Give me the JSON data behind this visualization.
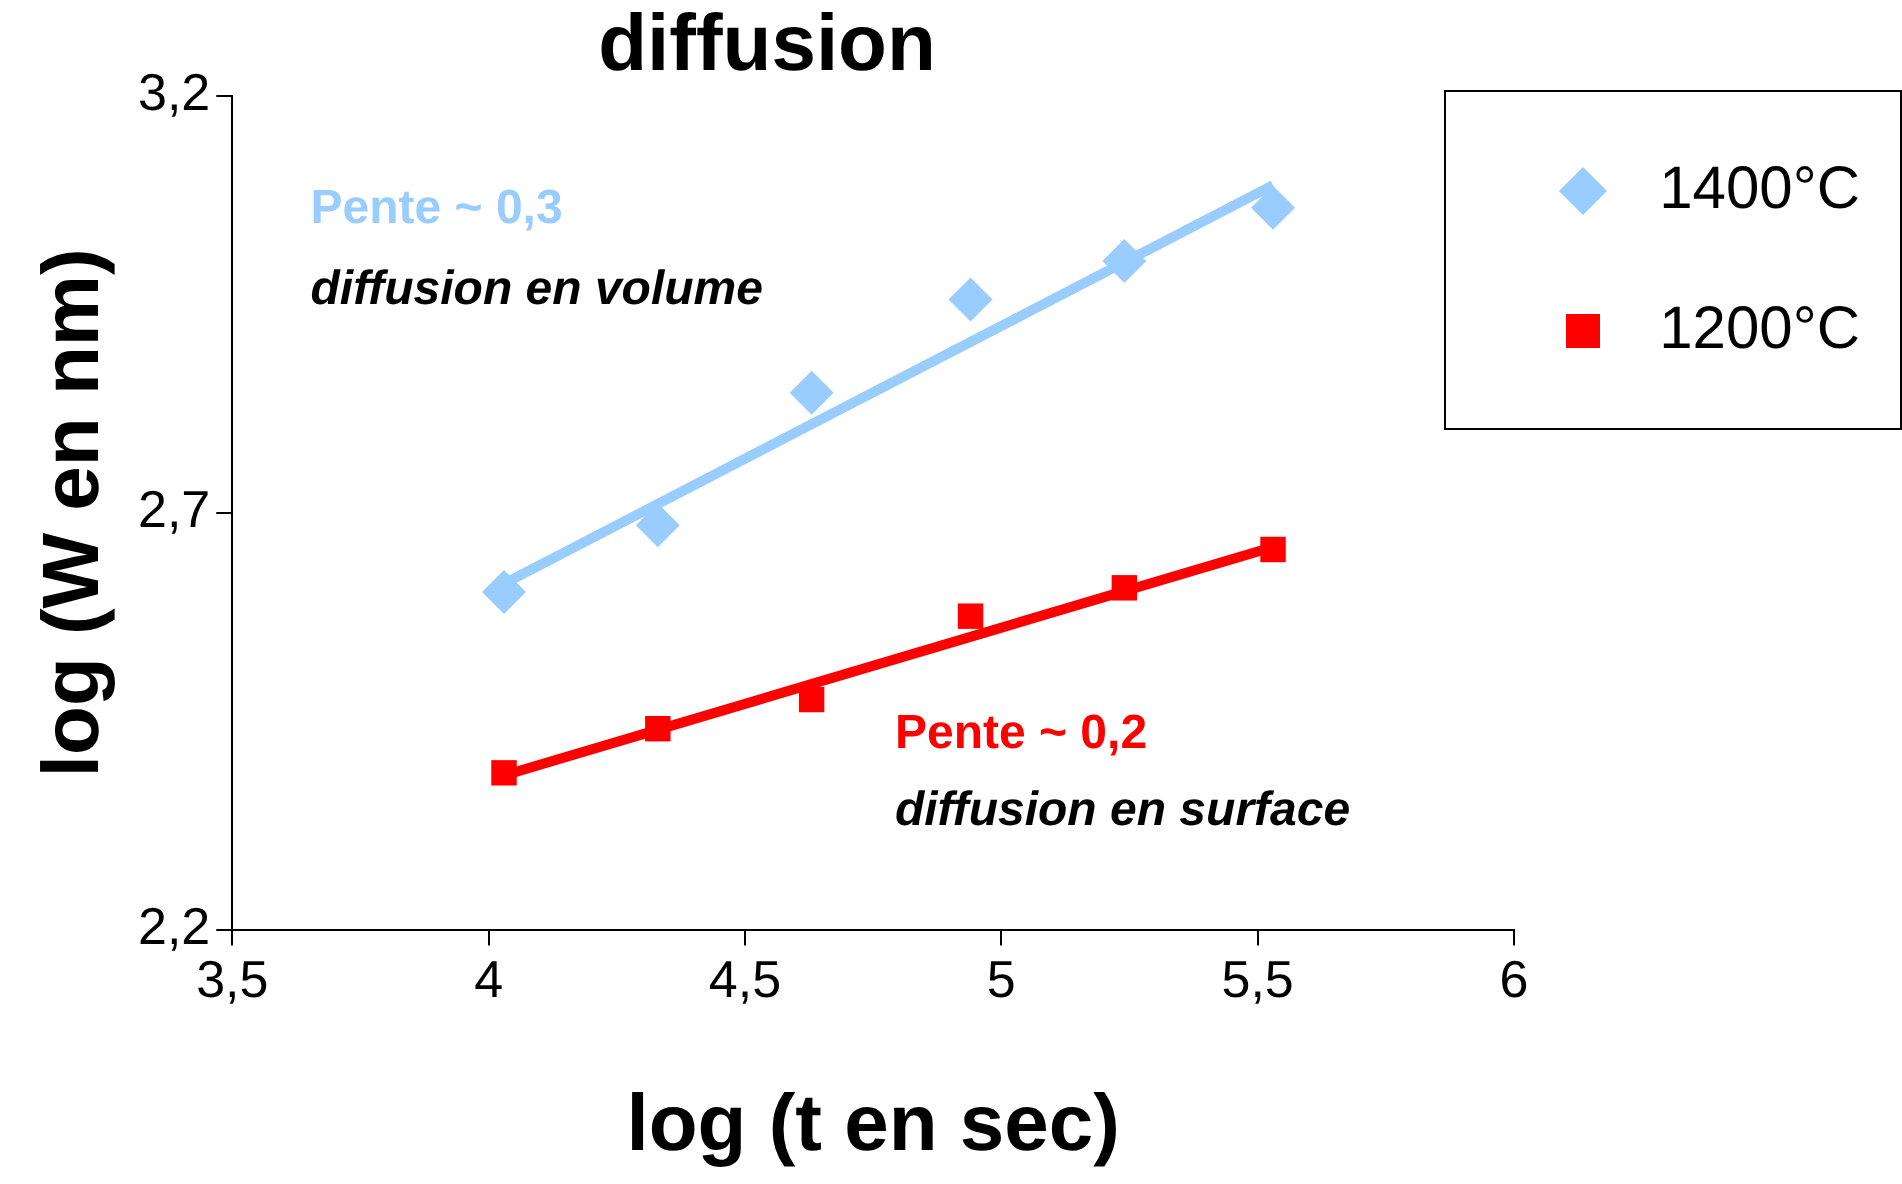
{
  "chart_data": {
    "type": "scatter",
    "title": "diffusion",
    "xlabel": "log (t en sec)",
    "ylabel": "log (W en nm)",
    "xlim": [
      3.5,
      6
    ],
    "ylim": [
      2.2,
      3.2
    ],
    "xticks": [
      {
        "value": 3.5,
        "label": "3,5"
      },
      4,
      {
        "value": 4.5,
        "label": "4,5"
      },
      5,
      {
        "value": 5.5,
        "label": "5,5"
      },
      6
    ],
    "yticks": [
      {
        "value": 2.2,
        "label": "2,2"
      },
      {
        "value": 2.7,
        "label": "2,7"
      },
      {
        "value": 3.2,
        "label": "3,2"
      }
    ],
    "grid": false,
    "legend": "top right",
    "series": [
      {
        "name": "1400°C",
        "marker": "diamond",
        "color": "#99ccff",
        "x": [
          4.03,
          4.33,
          4.63,
          4.94,
          5.24,
          5.53
        ],
        "values": [
          2.605,
          2.685,
          2.844,
          2.956,
          3.002,
          3.066
        ]
      },
      {
        "name": "1200°C",
        "marker": "square",
        "color": "#ff0000",
        "x": [
          4.03,
          4.33,
          4.63,
          4.94,
          5.24,
          5.53
        ],
        "values": [
          2.388,
          2.441,
          2.476,
          2.576,
          2.61,
          2.656
        ]
      },
      {
        "type": "line",
        "marker": "none",
        "color": "#99ccff",
        "x": [
          4.03,
          5.53
        ],
        "values": [
          2.615,
          3.093
        ]
      },
      {
        "type": "line",
        "marker": "none",
        "color": "#ff0000",
        "x": [
          4.03,
          5.53
        ],
        "values": [
          2.385,
          2.659
        ]
      }
    ],
    "annotations": [
      "Pente ~ 0,3",
      "diffusion en volume",
      "Pente ~ 0,2",
      "diffusion en surface"
    ]
  }
}
